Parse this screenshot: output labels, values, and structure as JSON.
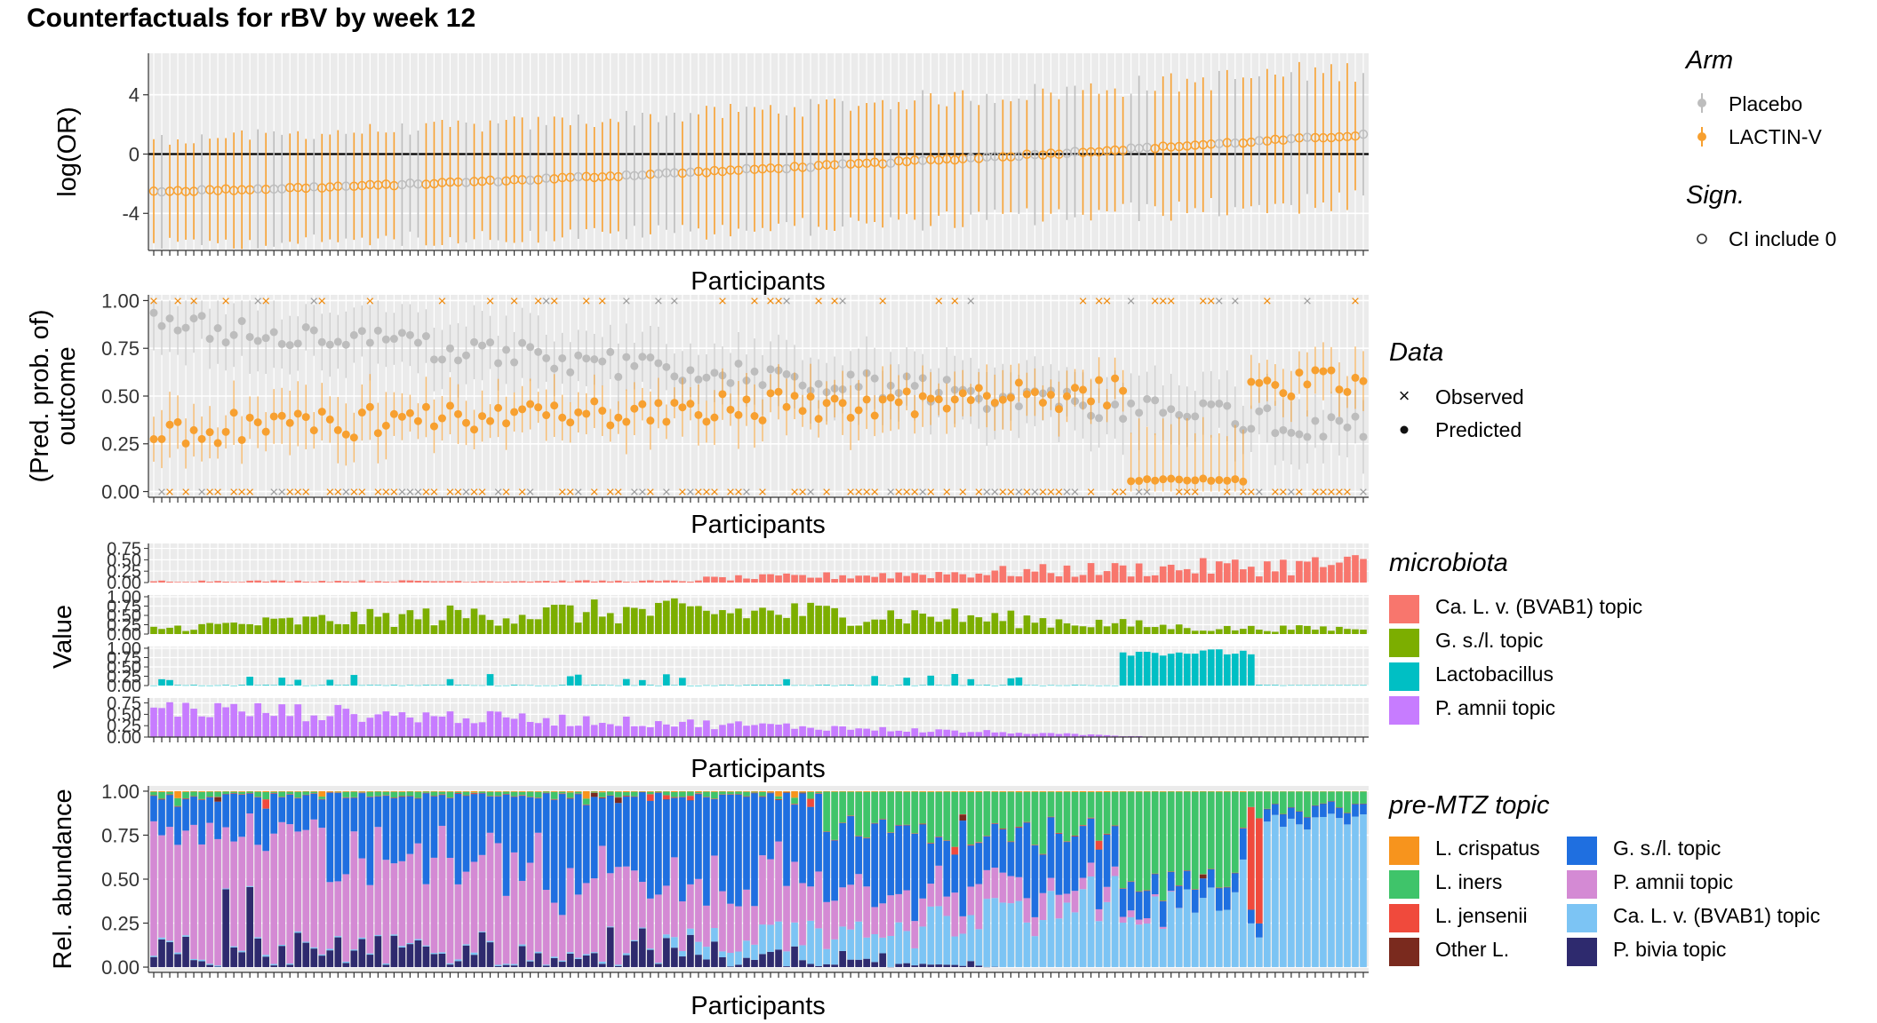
{
  "title": "Counterfactuals for rBV by week 12",
  "colors": {
    "placebo": "#bdbdbd",
    "lactin": "#f7a030",
    "panel_bg": "#ebebeb",
    "grid": "#ffffff",
    "microbiota": [
      "#f8766d",
      "#7cae00",
      "#00bfc4",
      "#c77cff"
    ],
    "topics": [
      "#f7941d",
      "#3fc46a",
      "#f04a3c",
      "#7a2a1e",
      "#1f6fe0",
      "#d48ad4",
      "#7cc4f4",
      "#2e2a6e"
    ]
  },
  "legends": {
    "arm": {
      "title": "Arm",
      "items": [
        "Placebo",
        "LACTIN-V"
      ]
    },
    "sign": {
      "title": "Sign.",
      "items": [
        "CI include 0"
      ]
    },
    "data": {
      "title": "Data",
      "items": [
        "Observed",
        "Predicted"
      ]
    },
    "microbiota": {
      "title": "microbiota",
      "items": [
        "Ca. L. v. (BVAB1) topic",
        "G. s./l. topic",
        "Lactobacillus",
        "P. amnii topic"
      ]
    },
    "topic": {
      "title": "pre-MTZ topic",
      "items": [
        "L. crispatus",
        "L. iners",
        "L. jensenii",
        "Other L.",
        "G. s./l. topic",
        "P. amnii topic",
        "Ca. L. v. (BVAB1) topic",
        "P. bivia topic"
      ]
    }
  },
  "chart_data": [
    {
      "type": "scatter",
      "panel": "logOR",
      "xlabel": "Participants",
      "ylabel": "log(OR)",
      "ylim": [
        -6.5,
        6.8
      ],
      "yticks": [
        "4",
        "0",
        "-4"
      ],
      "ytick_values": [
        4,
        0,
        -4
      ],
      "n_participants": 152,
      "logor_start": -2.5,
      "logor_end": 1.3,
      "placebo_fraction": 0.33,
      "ci_halfwidth_range": [
        2.6,
        4.8
      ],
      "reference_line": 0
    },
    {
      "type": "scatter",
      "panel": "outcome",
      "xlabel": "Participants",
      "ylabel": [
        "(Pred. prob. of)",
        "outcome"
      ],
      "ylim": [
        -0.03,
        1.03
      ],
      "yticks": [
        "1.00",
        "0.75",
        "0.50",
        "0.25",
        "0.00"
      ],
      "ytick_values": [
        1.0,
        0.75,
        0.5,
        0.25,
        0.0
      ],
      "observed_rate": 0.34
    },
    {
      "type": "bar",
      "panel": "microbiota",
      "xlabel": "Participants",
      "ylabel": "Value",
      "facets": [
        "Ca. L. v. (BVAB1) topic",
        "G. s./l. topic",
        "Lactobacillus",
        "P. amnii topic"
      ],
      "facet_yticks": [
        [
          "0.75",
          "0.50",
          "0.25",
          "0.00"
        ],
        [
          "1.00",
          "0.75",
          "0.50",
          "0.25",
          "0.00"
        ],
        [
          "1.00",
          "0.75",
          "0.50",
          "0.25",
          "0.00"
        ],
        [
          "0.75",
          "0.50",
          "0.25",
          "0.00"
        ]
      ],
      "facet_ymax": [
        0.82,
        1.0,
        1.0,
        0.82
      ]
    },
    {
      "type": "bar",
      "panel": "relative_abundance",
      "stacked": true,
      "xlabel": "Participants",
      "ylabel": "Rel. abundance",
      "ylim": [
        -0.03,
        1.03
      ],
      "yticks": [
        "1.00",
        "0.75",
        "0.50",
        "0.25",
        "0.00"
      ],
      "ytick_values": [
        1.0,
        0.75,
        0.5,
        0.25,
        0.0
      ],
      "series": [
        "L. crispatus",
        "L. iners",
        "L. jensenii",
        "Other L.",
        "G. s./l. topic",
        "P. amnii topic",
        "Ca. L. v. (BVAB1) topic",
        "P. bivia topic"
      ]
    }
  ]
}
